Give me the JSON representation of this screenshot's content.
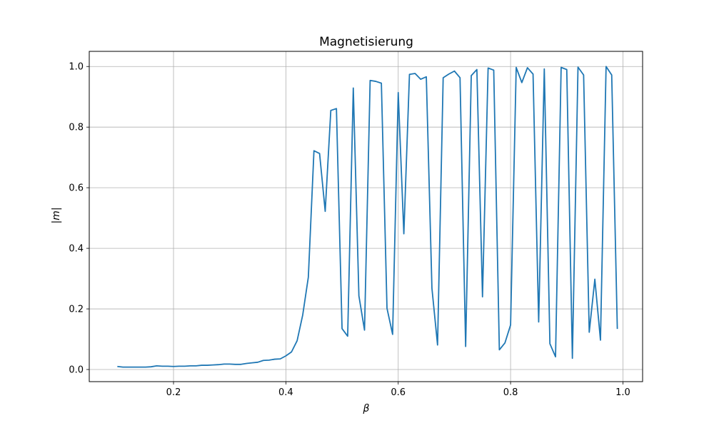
{
  "chart_data": {
    "type": "line",
    "title": "Magnetisierung",
    "xlabel": "β",
    "ylabel": "|m|",
    "xlim": [
      0.05,
      1.035
    ],
    "ylim": [
      -0.04,
      1.05
    ],
    "xticks": [
      0.2,
      0.4,
      0.6,
      0.8,
      1.0
    ],
    "xtick_labels": [
      "0.2",
      "0.4",
      "0.6",
      "0.8",
      "1.0"
    ],
    "yticks": [
      0.0,
      0.2,
      0.4,
      0.6,
      0.8,
      1.0
    ],
    "ytick_labels": [
      "0.0",
      "0.2",
      "0.4",
      "0.6",
      "0.8",
      "1.0"
    ],
    "grid": true,
    "color": "#1f77b4",
    "series": [
      {
        "x": [
          0.1,
          0.11,
          0.12,
          0.13,
          0.14,
          0.15,
          0.16,
          0.17,
          0.18,
          0.19,
          0.2,
          0.21,
          0.22,
          0.23,
          0.24,
          0.25,
          0.26,
          0.27,
          0.28,
          0.29,
          0.3,
          0.31,
          0.32,
          0.33,
          0.34,
          0.35,
          0.36,
          0.37,
          0.38,
          0.39,
          0.4,
          0.41,
          0.42,
          0.43,
          0.44,
          0.45,
          0.46,
          0.47,
          0.48,
          0.49,
          0.5,
          0.51,
          0.52,
          0.53,
          0.54,
          0.55,
          0.56,
          0.57,
          0.58,
          0.59,
          0.6,
          0.61,
          0.62,
          0.63,
          0.64,
          0.65,
          0.66,
          0.67,
          0.68,
          0.69,
          0.7,
          0.71,
          0.72,
          0.73,
          0.74,
          0.75,
          0.76,
          0.77,
          0.78,
          0.79,
          0.8,
          0.81,
          0.82,
          0.83,
          0.84,
          0.85,
          0.86,
          0.87,
          0.88,
          0.89,
          0.9,
          0.91,
          0.92,
          0.93,
          0.94,
          0.95,
          0.96,
          0.97,
          0.98,
          0.99
        ],
        "y": [
          0.01,
          0.008,
          0.008,
          0.008,
          0.008,
          0.008,
          0.009,
          0.012,
          0.011,
          0.011,
          0.01,
          0.011,
          0.011,
          0.012,
          0.012,
          0.014,
          0.014,
          0.015,
          0.016,
          0.018,
          0.018,
          0.017,
          0.017,
          0.02,
          0.022,
          0.024,
          0.03,
          0.031,
          0.034,
          0.035,
          0.045,
          0.058,
          0.095,
          0.18,
          0.305,
          0.722,
          0.713,
          0.522,
          0.855,
          0.861,
          0.135,
          0.11,
          0.929,
          0.243,
          0.13,
          0.954,
          0.951,
          0.945,
          0.202,
          0.116,
          0.914,
          0.448,
          0.974,
          0.977,
          0.958,
          0.966,
          0.268,
          0.081,
          0.963,
          0.975,
          0.985,
          0.963,
          0.076,
          0.97,
          0.99,
          0.24,
          0.995,
          0.988,
          0.065,
          0.088,
          0.147,
          0.997,
          0.947,
          0.996,
          0.975,
          0.157,
          0.992,
          0.085,
          0.042,
          0.997,
          0.99,
          0.037,
          0.998,
          0.972,
          0.123,
          0.298,
          0.097,
          1.0,
          0.972,
          0.134
        ]
      }
    ]
  }
}
